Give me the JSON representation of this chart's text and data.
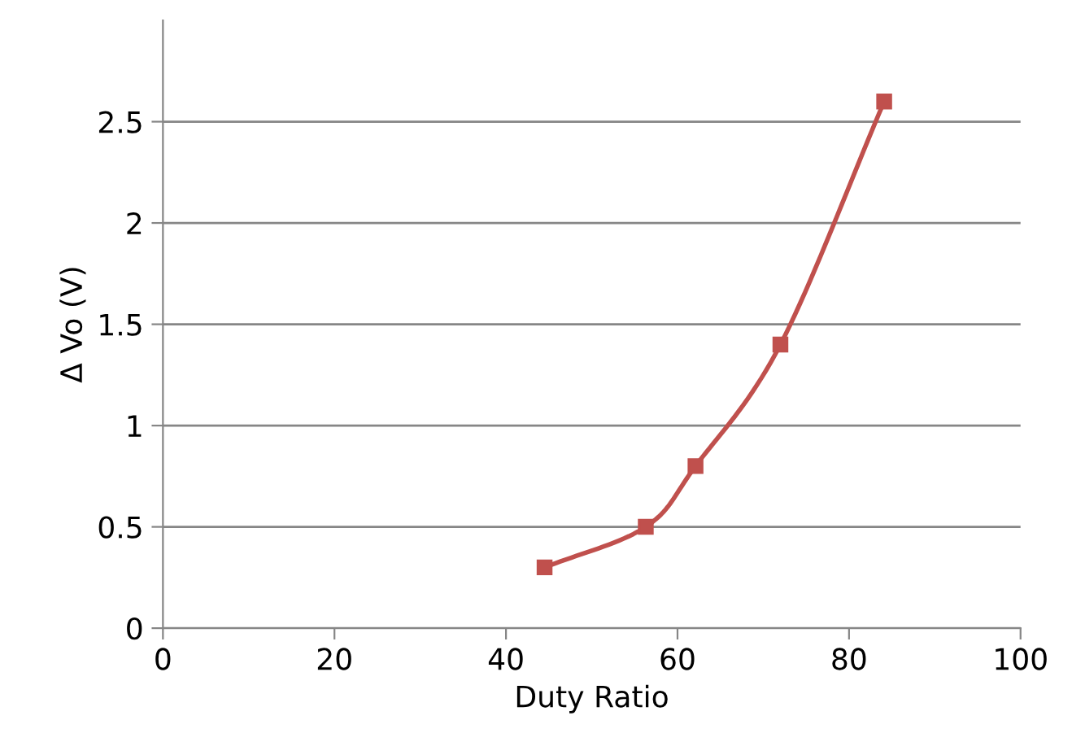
{
  "chart_data": {
    "type": "line",
    "xlabel": "Duty Ratio",
    "ylabel": "Δ Vo (V)",
    "x": [
      44.5,
      56.3,
      62.1,
      72,
      84.1
    ],
    "series": [
      {
        "color": "#c0504d",
        "values": [
          0.3,
          0.5,
          0.8,
          1.4,
          2.6
        ]
      }
    ],
    "xlim": [
      0,
      100
    ],
    "xticks": [
      0,
      20,
      40,
      60,
      80,
      100
    ],
    "ylim": [
      0,
      3
    ],
    "yticks": [
      0,
      0.5,
      1,
      1.5,
      2,
      2.5
    ],
    "grid": "y",
    "marker": "square",
    "line_style": "solid",
    "legend": false
  }
}
